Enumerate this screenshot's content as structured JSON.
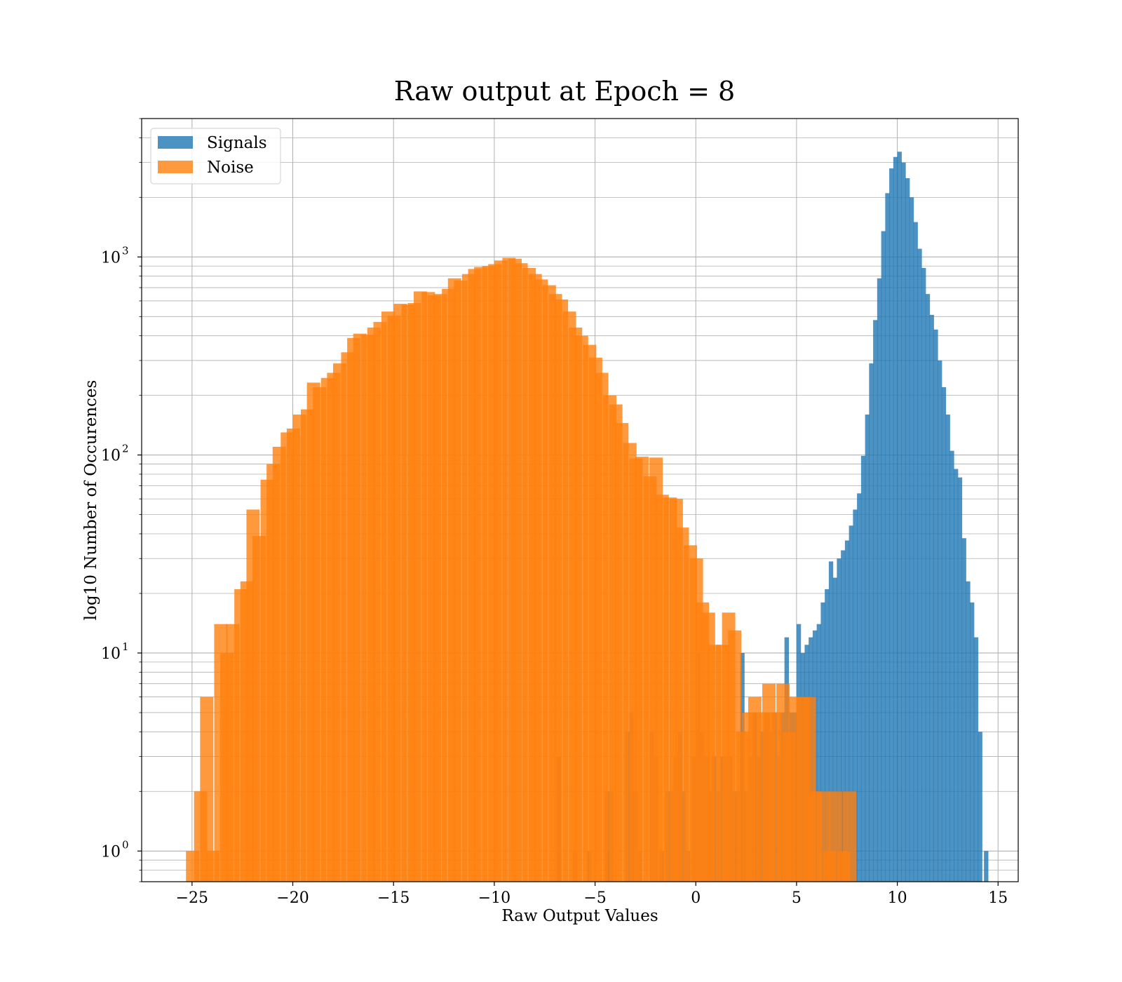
{
  "chart_data": {
    "type": "bar",
    "title": "Raw output at Epoch = 8",
    "xlabel": "Raw Output Values",
    "ylabel": "log10 Number of Occurences",
    "xlim": [
      -27.5,
      16
    ],
    "ylim": [
      0.7,
      5000
    ],
    "yscale": "log",
    "grid": true,
    "legend_position": "top-left",
    "x_ticks": [
      -25,
      -20,
      -15,
      -10,
      -5,
      0,
      5,
      10,
      15
    ],
    "x_tick_labels": [
      "−25",
      "−20",
      "−15",
      "−10",
      "−5",
      "0",
      "5",
      "10",
      "15"
    ],
    "y_ticks": [
      {
        "value": 1,
        "base": "10",
        "exp": "0"
      },
      {
        "value": 10,
        "base": "10",
        "exp": "1"
      },
      {
        "value": 100,
        "base": "10",
        "exp": "2"
      },
      {
        "value": 1000,
        "base": "10",
        "exp": "3"
      }
    ],
    "series": [
      {
        "name": "Signals",
        "color": "#1f77b4",
        "opacity": 0.8,
        "bin_width": 0.22,
        "bins": [
          [
            -6.9,
            3
          ],
          [
            -6.9,
            1
          ],
          [
            -6.1,
            1
          ],
          [
            -5.4,
            1
          ],
          [
            -4.5,
            2
          ],
          [
            -4.3,
            2
          ],
          [
            -4.5,
            1
          ],
          [
            -3.5,
            4
          ],
          [
            -3.3,
            5
          ],
          [
            -3.1,
            2
          ],
          [
            -2.9,
            1
          ],
          [
            -2.3,
            4
          ],
          [
            -2.1,
            3
          ],
          [
            -1.8,
            1
          ],
          [
            -1.5,
            2
          ],
          [
            -1.3,
            2
          ],
          [
            -1.1,
            3
          ],
          [
            -0.9,
            4
          ],
          [
            -0.7,
            2
          ],
          [
            -0.5,
            1
          ],
          [
            -0.2,
            3
          ],
          [
            0.0,
            10
          ],
          [
            0.2,
            4
          ],
          [
            0.4,
            3
          ],
          [
            0.6,
            2
          ],
          [
            0.8,
            3
          ],
          [
            1.0,
            2
          ],
          [
            1.2,
            3
          ],
          [
            1.4,
            3
          ],
          [
            1.6,
            3
          ],
          [
            1.8,
            2
          ],
          [
            2.0,
            2
          ],
          [
            2.2,
            10
          ],
          [
            2.4,
            2
          ],
          [
            2.6,
            3
          ],
          [
            2.8,
            5
          ],
          [
            3.0,
            3
          ],
          [
            3.2,
            4
          ],
          [
            3.4,
            5
          ],
          [
            3.6,
            4
          ],
          [
            3.8,
            5
          ],
          [
            4.0,
            3
          ],
          [
            4.2,
            5
          ],
          [
            4.4,
            12
          ],
          [
            4.6,
            5
          ],
          [
            4.8,
            5
          ],
          [
            5.0,
            14
          ],
          [
            5.2,
            10
          ],
          [
            5.4,
            11
          ],
          [
            5.6,
            12
          ],
          [
            5.8,
            13
          ],
          [
            6.0,
            14
          ],
          [
            6.2,
            18
          ],
          [
            6.4,
            21
          ],
          [
            6.6,
            29
          ],
          [
            6.8,
            24
          ],
          [
            7.0,
            30
          ],
          [
            7.2,
            33
          ],
          [
            7.4,
            37
          ],
          [
            7.6,
            44
          ],
          [
            7.8,
            53
          ],
          [
            8.0,
            64
          ],
          [
            8.2,
            99
          ],
          [
            8.4,
            160
          ],
          [
            8.6,
            290
          ],
          [
            8.8,
            480
          ],
          [
            9.0,
            780
          ],
          [
            9.2,
            1350
          ],
          [
            9.4,
            2100
          ],
          [
            9.6,
            2800
          ],
          [
            9.8,
            3200
          ],
          [
            10.0,
            3400
          ],
          [
            10.2,
            3000
          ],
          [
            10.4,
            2500
          ],
          [
            10.6,
            2000
          ],
          [
            10.8,
            1500
          ],
          [
            11.0,
            1100
          ],
          [
            11.2,
            880
          ],
          [
            11.4,
            650
          ],
          [
            11.6,
            510
          ],
          [
            11.8,
            430
          ],
          [
            12.0,
            300
          ],
          [
            12.2,
            220
          ],
          [
            12.4,
            160
          ],
          [
            12.6,
            105
          ],
          [
            12.8,
            85
          ],
          [
            13.0,
            77
          ],
          [
            13.2,
            38
          ],
          [
            13.4,
            23
          ],
          [
            13.6,
            18
          ],
          [
            13.8,
            12
          ],
          [
            14.0,
            4
          ],
          [
            14.3,
            1
          ]
        ]
      },
      {
        "name": "Noise",
        "color": "#ff7f0e",
        "opacity": 0.8,
        "bin_width": 0.66,
        "bins": [
          [
            -25.3,
            1
          ],
          [
            -24.9,
            2
          ],
          [
            -24.6,
            6
          ],
          [
            -24.3,
            1
          ],
          [
            -23.9,
            14
          ],
          [
            -23.6,
            10
          ],
          [
            -23.3,
            14
          ],
          [
            -22.9,
            21
          ],
          [
            -22.6,
            23
          ],
          [
            -22.3,
            53
          ],
          [
            -22.0,
            39
          ],
          [
            -21.6,
            75
          ],
          [
            -21.3,
            90
          ],
          [
            -21.0,
            110
          ],
          [
            -20.6,
            130
          ],
          [
            -20.3,
            136
          ],
          [
            -20.0,
            160
          ],
          [
            -19.6,
            170
          ],
          [
            -19.3,
            232
          ],
          [
            -19.0,
            220
          ],
          [
            -18.6,
            245
          ],
          [
            -18.3,
            260
          ],
          [
            -18.0,
            290
          ],
          [
            -17.6,
            330
          ],
          [
            -17.3,
            390
          ],
          [
            -17.0,
            410
          ],
          [
            -16.6,
            405
          ],
          [
            -16.3,
            440
          ],
          [
            -16.0,
            470
          ],
          [
            -15.6,
            530
          ],
          [
            -15.3,
            505
          ],
          [
            -15.0,
            580
          ],
          [
            -14.6,
            575
          ],
          [
            -14.3,
            585
          ],
          [
            -14.0,
            670
          ],
          [
            -13.6,
            665
          ],
          [
            -13.3,
            640
          ],
          [
            -13.0,
            650
          ],
          [
            -12.6,
            690
          ],
          [
            -12.3,
            780
          ],
          [
            -12.0,
            760
          ],
          [
            -11.6,
            820
          ],
          [
            -11.3,
            870
          ],
          [
            -11.0,
            890
          ],
          [
            -10.6,
            900
          ],
          [
            -10.3,
            920
          ],
          [
            -10.0,
            960
          ],
          [
            -9.6,
            990
          ],
          [
            -9.3,
            980
          ],
          [
            -9.0,
            930
          ],
          [
            -8.6,
            880
          ],
          [
            -8.3,
            820
          ],
          [
            -8.0,
            770
          ],
          [
            -7.6,
            720
          ],
          [
            -7.3,
            650
          ],
          [
            -7.0,
            610
          ],
          [
            -6.6,
            530
          ],
          [
            -6.3,
            440
          ],
          [
            -6.0,
            400
          ],
          [
            -5.6,
            360
          ],
          [
            -5.3,
            310
          ],
          [
            -5.0,
            260
          ],
          [
            -4.6,
            200
          ],
          [
            -4.3,
            180
          ],
          [
            -4.0,
            145
          ],
          [
            -3.6,
            115
          ],
          [
            -3.3,
            96
          ],
          [
            -3.0,
            98
          ],
          [
            -2.6,
            78
          ],
          [
            -2.3,
            97
          ],
          [
            -2.0,
            63
          ],
          [
            -1.6,
            61
          ],
          [
            -1.3,
            60
          ],
          [
            -1.0,
            43
          ],
          [
            -0.6,
            35
          ],
          [
            -0.3,
            30
          ],
          [
            0.0,
            18
          ],
          [
            0.3,
            16
          ],
          [
            0.6,
            11
          ],
          [
            1.0,
            11
          ],
          [
            1.3,
            16
          ],
          [
            1.6,
            13
          ],
          [
            2.0,
            4
          ],
          [
            2.3,
            5
          ],
          [
            2.6,
            6
          ],
          [
            3.0,
            5
          ],
          [
            3.3,
            7
          ],
          [
            3.6,
            5
          ],
          [
            4.0,
            7
          ],
          [
            4.3,
            4
          ],
          [
            4.6,
            6
          ],
          [
            5.0,
            6
          ],
          [
            5.3,
            6
          ],
          [
            5.6,
            2
          ],
          [
            6.0,
            2
          ],
          [
            6.3,
            1
          ],
          [
            6.6,
            2
          ],
          [
            7.0,
            1
          ],
          [
            7.3,
            2
          ]
        ]
      }
    ]
  }
}
